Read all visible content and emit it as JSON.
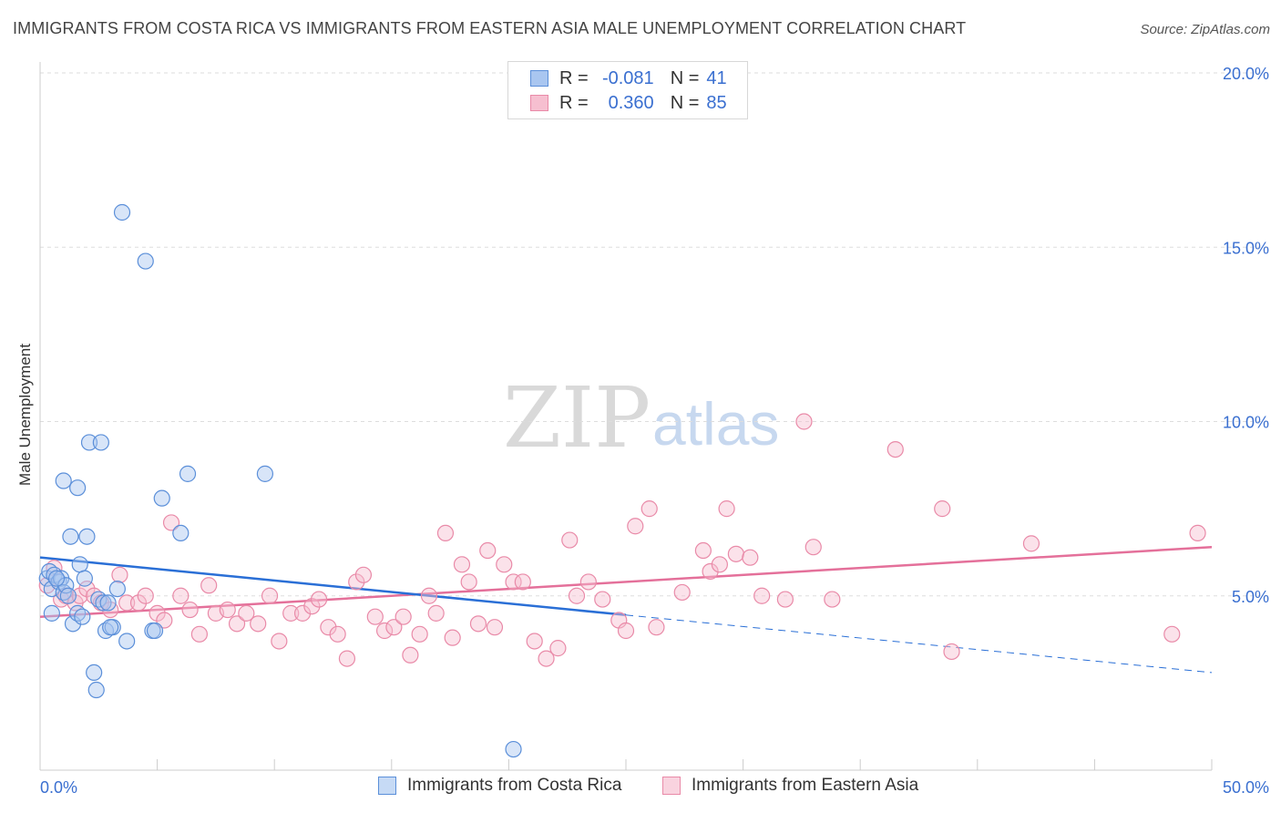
{
  "title": "IMMIGRANTS FROM COSTA RICA VS IMMIGRANTS FROM EASTERN ASIA MALE UNEMPLOYMENT CORRELATION CHART",
  "source": "Source: ZipAtlas.com",
  "watermark": {
    "zip": "ZIP",
    "atlas": "atlas"
  },
  "legend": {
    "rows": [
      {
        "r_label": "R =",
        "r_value": "-0.081",
        "n_label": "N =",
        "n_value": "41"
      },
      {
        "r_label": "R =",
        "r_value": "0.360",
        "n_label": "N =",
        "n_value": "85"
      }
    ]
  },
  "colors": {
    "series1_fill": "#a9c6f0",
    "series1_stroke": "#5b8fd9",
    "series1_line": "#2a6fd6",
    "series2_fill": "#f6bfd0",
    "series2_stroke": "#e98aa8",
    "series2_line": "#e4709a",
    "tick_text": "#3a6fd0",
    "grid": "#dddddd"
  },
  "chart_data": {
    "type": "scatter",
    "title": "IMMIGRANTS FROM COSTA RICA VS IMMIGRANTS FROM EASTERN ASIA MALE UNEMPLOYMENT CORRELATION CHART",
    "xlabel": "",
    "ylabel": "Male Unemployment",
    "xlim": [
      0,
      50
    ],
    "ylim": [
      0,
      20
    ],
    "x_tick_labels": [
      "0.0%",
      "50.0%"
    ],
    "y_ticks": [
      5,
      10,
      15,
      20
    ],
    "y_tick_labels": [
      "5.0%",
      "10.0%",
      "15.0%",
      "20.0%"
    ],
    "grid": "horizontal dashed",
    "legend_position": "top-center",
    "series": [
      {
        "name": "Immigrants from Costa Rica",
        "r": -0.081,
        "n": 41,
        "trend": {
          "x": [
            0,
            25
          ],
          "y": [
            6.1,
            4.45
          ],
          "dashed_extension_x": [
            25,
            50
          ],
          "dashed_extension_y": [
            4.45,
            2.8
          ]
        },
        "points": [
          [
            0.3,
            5.5
          ],
          [
            0.4,
            5.7
          ],
          [
            0.5,
            5.2
          ],
          [
            0.6,
            5.6
          ],
          [
            0.8,
            5.4
          ],
          [
            0.9,
            5.5
          ],
          [
            1.0,
            5.1
          ],
          [
            1.1,
            5.3
          ],
          [
            1.2,
            5.0
          ],
          [
            0.5,
            4.5
          ],
          [
            1.4,
            4.2
          ],
          [
            1.6,
            4.5
          ],
          [
            1.8,
            4.4
          ],
          [
            1.7,
            5.9
          ],
          [
            1.9,
            5.5
          ],
          [
            2.0,
            6.7
          ],
          [
            1.3,
            6.7
          ],
          [
            1.0,
            8.3
          ],
          [
            1.6,
            8.1
          ],
          [
            2.1,
            9.4
          ],
          [
            2.6,
            9.4
          ],
          [
            2.5,
            4.9
          ],
          [
            2.7,
            4.8
          ],
          [
            2.9,
            4.8
          ],
          [
            2.8,
            4.0
          ],
          [
            3.1,
            4.1
          ],
          [
            3.0,
            4.1
          ],
          [
            3.3,
            5.2
          ],
          [
            3.7,
            3.7
          ],
          [
            2.3,
            2.8
          ],
          [
            2.4,
            2.3
          ],
          [
            3.5,
            16.0
          ],
          [
            4.5,
            14.6
          ],
          [
            5.2,
            7.8
          ],
          [
            6.3,
            8.5
          ],
          [
            6.0,
            6.8
          ],
          [
            9.6,
            8.5
          ],
          [
            4.8,
            4.0
          ],
          [
            4.9,
            4.0
          ],
          [
            20.2,
            0.6
          ],
          [
            0.7,
            5.5
          ]
        ]
      },
      {
        "name": "Immigrants from Eastern Asia",
        "r": 0.36,
        "n": 85,
        "trend": {
          "x": [
            0,
            50
          ],
          "y": [
            4.4,
            6.4
          ]
        },
        "points": [
          [
            0.3,
            5.3
          ],
          [
            0.6,
            5.8
          ],
          [
            0.9,
            4.9
          ],
          [
            1.1,
            5.0
          ],
          [
            1.5,
            4.8
          ],
          [
            1.7,
            5.0
          ],
          [
            2.0,
            5.2
          ],
          [
            2.3,
            5.0
          ],
          [
            2.6,
            4.8
          ],
          [
            3.0,
            4.6
          ],
          [
            3.4,
            5.6
          ],
          [
            3.7,
            4.8
          ],
          [
            4.2,
            4.8
          ],
          [
            4.5,
            5.0
          ],
          [
            5.0,
            4.5
          ],
          [
            5.3,
            4.3
          ],
          [
            5.6,
            7.1
          ],
          [
            6.0,
            5.0
          ],
          [
            6.4,
            4.6
          ],
          [
            6.8,
            3.9
          ],
          [
            7.2,
            5.3
          ],
          [
            7.5,
            4.5
          ],
          [
            8.0,
            4.6
          ],
          [
            8.4,
            4.2
          ],
          [
            8.8,
            4.5
          ],
          [
            9.3,
            4.2
          ],
          [
            9.8,
            5.0
          ],
          [
            10.2,
            3.7
          ],
          [
            10.7,
            4.5
          ],
          [
            11.2,
            4.5
          ],
          [
            11.6,
            4.7
          ],
          [
            11.9,
            4.9
          ],
          [
            12.3,
            4.1
          ],
          [
            12.7,
            3.9
          ],
          [
            13.1,
            3.2
          ],
          [
            13.5,
            5.4
          ],
          [
            13.8,
            5.6
          ],
          [
            14.3,
            4.4
          ],
          [
            14.7,
            4.0
          ],
          [
            15.1,
            4.1
          ],
          [
            15.5,
            4.4
          ],
          [
            15.8,
            3.3
          ],
          [
            16.2,
            3.9
          ],
          [
            16.6,
            5.0
          ],
          [
            16.9,
            4.5
          ],
          [
            17.3,
            6.8
          ],
          [
            17.6,
            3.8
          ],
          [
            18.0,
            5.9
          ],
          [
            18.3,
            5.4
          ],
          [
            18.7,
            4.2
          ],
          [
            19.1,
            6.3
          ],
          [
            19.4,
            4.1
          ],
          [
            19.8,
            5.9
          ],
          [
            20.2,
            5.4
          ],
          [
            20.6,
            5.4
          ],
          [
            21.1,
            3.7
          ],
          [
            21.6,
            3.2
          ],
          [
            22.1,
            3.5
          ],
          [
            22.6,
            6.6
          ],
          [
            22.9,
            5.0
          ],
          [
            23.4,
            5.4
          ],
          [
            24.0,
            4.9
          ],
          [
            24.7,
            4.3
          ],
          [
            25.0,
            4.0
          ],
          [
            25.4,
            7.0
          ],
          [
            26.0,
            7.5
          ],
          [
            26.3,
            4.1
          ],
          [
            27.4,
            5.1
          ],
          [
            28.3,
            6.3
          ],
          [
            28.6,
            5.7
          ],
          [
            29.0,
            5.9
          ],
          [
            29.3,
            7.5
          ],
          [
            29.7,
            6.2
          ],
          [
            30.3,
            6.1
          ],
          [
            30.8,
            5.0
          ],
          [
            31.8,
            4.9
          ],
          [
            32.6,
            10.0
          ],
          [
            33.0,
            6.4
          ],
          [
            33.8,
            4.9
          ],
          [
            36.5,
            9.2
          ],
          [
            38.5,
            7.5
          ],
          [
            38.9,
            3.4
          ],
          [
            42.3,
            6.5
          ],
          [
            48.3,
            3.9
          ],
          [
            49.4,
            6.8
          ]
        ]
      }
    ]
  },
  "bottom_legend": [
    {
      "label": "Immigrants from Costa Rica"
    },
    {
      "label": "Immigrants from Eastern Asia"
    }
  ]
}
